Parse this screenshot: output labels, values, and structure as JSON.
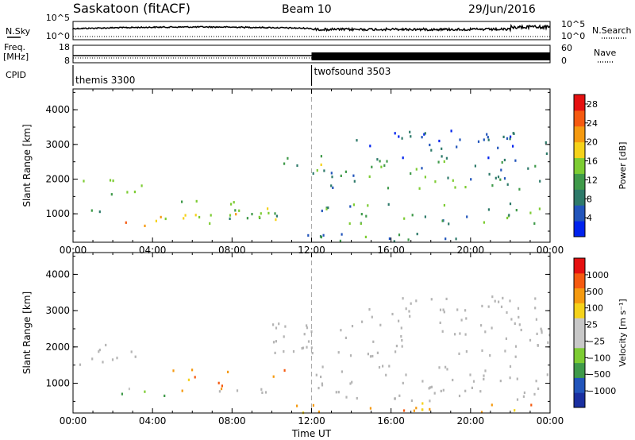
{
  "header": {
    "station": "Saskatoon (fitACF)",
    "beam": "Beam 10",
    "date": "29/Jun/2016"
  },
  "noise_panel": {
    "left_label": "N.Sky",
    "left_ticks": [
      "10^5",
      "10^0"
    ],
    "right_ticks": [
      "10^5",
      "10^0"
    ],
    "right_label": "N.Search"
  },
  "freq_panel": {
    "left_label_1": "Freq.",
    "left_label_2": "[MHz]",
    "left_ticks": [
      "18",
      "8"
    ],
    "right_ticks": [
      "60",
      "0"
    ],
    "right_label": "Nave",
    "cpid_label": "CPID",
    "cpid_segments": [
      {
        "name": "themis 3300",
        "start_hour": 0
      },
      {
        "name": "twofsound 3503",
        "start_hour": 12
      }
    ]
  },
  "colors": {
    "power_scale": [
      "#0022ee",
      "#2255bb",
      "#2e7a6a",
      "#3f9a4a",
      "#7dcc33",
      "#f5d21a",
      "#f59a10",
      "#f55a10",
      "#e51010"
    ],
    "velocity_scale": [
      "#e51010",
      "#f55a10",
      "#f59a10",
      "#f5d21a",
      "#c8c8c8",
      "#c8c8c8",
      "#7dcc33",
      "#3f9a4a",
      "#2255bb",
      "#1a2fa0"
    ],
    "ground_scatter": "#b4b4b4"
  },
  "chart_data": [
    {
      "type": "heatmap",
      "panel": "power",
      "xlabel": "Time UT",
      "ylabel": "Slant Range [km]",
      "x_ticks": [
        "00:00",
        "04:00",
        "08:00",
        "12:00",
        "16:00",
        "20:00",
        "00:00"
      ],
      "xlim_hours": [
        0,
        24
      ],
      "ylim": [
        180,
        4600
      ],
      "y_ticks": [
        1000,
        2000,
        3000,
        4000
      ],
      "colorbar_label": "Power [dB]",
      "colorbar_ticks": [
        "4",
        "8",
        "12",
        "16",
        "20",
        "24",
        "28"
      ],
      "colorbar_range": [
        0,
        30
      ],
      "scatter_regions": [
        {
          "t0": 0.3,
          "t1": 3.5,
          "r0": 1750,
          "r1": 2050,
          "level": 14
        },
        {
          "t0": 1.8,
          "t1": 3.8,
          "r0": 1500,
          "r1": 1800,
          "level": 12
        },
        {
          "t0": 2.0,
          "t1": 4.6,
          "r0": 650,
          "r1": 950,
          "level": 22
        },
        {
          "t0": 0.3,
          "t1": 1.8,
          "r0": 900,
          "r1": 1200,
          "level": 8
        },
        {
          "t0": 5.0,
          "t1": 10.6,
          "r0": 700,
          "r1": 1400,
          "level": 14
        },
        {
          "t0": 4.6,
          "t1": 10.6,
          "r0": 700,
          "r1": 1000,
          "level": 18
        },
        {
          "t0": 10.0,
          "t1": 12.6,
          "r0": 2300,
          "r1": 2700,
          "level": 12
        },
        {
          "t0": 12.0,
          "t1": 23.8,
          "r0": 1700,
          "r1": 2600,
          "level": 10
        },
        {
          "t0": 12.3,
          "t1": 23.8,
          "r0": 700,
          "r1": 1300,
          "level": 11
        },
        {
          "t0": 11.0,
          "t1": 24.0,
          "r0": 180,
          "r1": 420,
          "level": 9
        },
        {
          "t0": 14.0,
          "t1": 23.8,
          "r0": 2600,
          "r1": 3400,
          "level": 5
        }
      ]
    },
    {
      "type": "heatmap",
      "panel": "velocity",
      "xlabel": "Time UT",
      "ylabel": "Slant Range [km]",
      "x_ticks": [
        "00:00",
        "04:00",
        "08:00",
        "12:00",
        "16:00",
        "20:00",
        "00:00"
      ],
      "xlim_hours": [
        0,
        24
      ],
      "ylim": [
        180,
        4600
      ],
      "y_ticks": [
        1000,
        2000,
        3000,
        4000
      ],
      "colorbar_label": "Velocity [m s⁻¹]",
      "colorbar_ticks": [
        "1000",
        "500",
        "100",
        "25",
        "−25",
        "−100",
        "−500",
        "−1000"
      ],
      "scatter_regions": [
        {
          "t0": 0.3,
          "t1": 3.8,
          "r0": 1500,
          "r1": 2100,
          "kind": "ground"
        },
        {
          "t0": 1.8,
          "t1": 4.6,
          "r0": 650,
          "r1": 950,
          "kind": "flow",
          "level": 100
        },
        {
          "t0": 5.0,
          "t1": 7.8,
          "r0": 700,
          "r1": 1400,
          "kind": "flow",
          "level": -100
        },
        {
          "t0": 7.0,
          "t1": 10.3,
          "r0": 700,
          "r1": 1000,
          "kind": "ground"
        },
        {
          "t0": 10.0,
          "t1": 10.8,
          "r0": 1100,
          "r1": 1700,
          "kind": "flow",
          "level": -500
        },
        {
          "t0": 10.0,
          "t1": 24.0,
          "r0": 1700,
          "r1": 2700,
          "kind": "ground"
        },
        {
          "t0": 12.0,
          "t1": 24.0,
          "r0": 500,
          "r1": 1500,
          "kind": "ground"
        },
        {
          "t0": 14.0,
          "t1": 23.8,
          "r0": 2600,
          "r1": 3400,
          "kind": "ground"
        },
        {
          "t0": 11.0,
          "t1": 24.0,
          "r0": 180,
          "r1": 450,
          "kind": "flow",
          "level": -100
        }
      ]
    }
  ]
}
